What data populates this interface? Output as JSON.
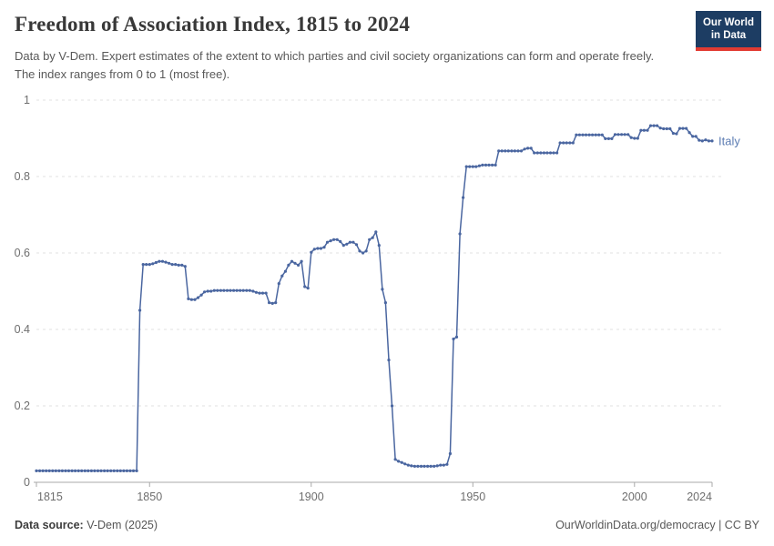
{
  "header": {
    "title": "Freedom of Association Index, 1815 to 2024",
    "subtitle": "Data by V-Dem. Expert estimates of the extent to which parties and civil society organizations can form and operate freely. The index ranges from 0 to 1 (most free).",
    "logo": {
      "line1": "Our World",
      "line2": "in Data"
    }
  },
  "chart_data": {
    "type": "line",
    "title": "Freedom of Association Index, 1815 to 2024",
    "xlabel": "",
    "ylabel": "",
    "xlim": [
      1815,
      2024
    ],
    "ylim": [
      0,
      1
    ],
    "x_ticks": [
      1815,
      1850,
      1900,
      1950,
      2000,
      2024
    ],
    "y_ticks": [
      0,
      0.2,
      0.4,
      0.6,
      0.8,
      1
    ],
    "grid": "horizontal-dashed",
    "legend_position": "end-of-line-label",
    "end_label": "Italy",
    "series": [
      {
        "name": "Italy",
        "color": "#4a66a0",
        "points": [
          [
            1815,
            0.03
          ],
          [
            1816,
            0.03
          ],
          [
            1817,
            0.03
          ],
          [
            1818,
            0.03
          ],
          [
            1819,
            0.03
          ],
          [
            1820,
            0.03
          ],
          [
            1821,
            0.03
          ],
          [
            1822,
            0.03
          ],
          [
            1823,
            0.03
          ],
          [
            1824,
            0.03
          ],
          [
            1825,
            0.03
          ],
          [
            1826,
            0.03
          ],
          [
            1827,
            0.03
          ],
          [
            1828,
            0.03
          ],
          [
            1829,
            0.03
          ],
          [
            1830,
            0.03
          ],
          [
            1831,
            0.03
          ],
          [
            1832,
            0.03
          ],
          [
            1833,
            0.03
          ],
          [
            1834,
            0.03
          ],
          [
            1835,
            0.03
          ],
          [
            1836,
            0.03
          ],
          [
            1837,
            0.03
          ],
          [
            1838,
            0.03
          ],
          [
            1839,
            0.03
          ],
          [
            1840,
            0.03
          ],
          [
            1841,
            0.03
          ],
          [
            1842,
            0.03
          ],
          [
            1843,
            0.03
          ],
          [
            1844,
            0.03
          ],
          [
            1845,
            0.03
          ],
          [
            1846,
            0.03
          ],
          [
            1847,
            0.45
          ],
          [
            1848,
            0.57
          ],
          [
            1849,
            0.57
          ],
          [
            1850,
            0.57
          ],
          [
            1851,
            0.572
          ],
          [
            1852,
            0.575
          ],
          [
            1853,
            0.578
          ],
          [
            1854,
            0.578
          ],
          [
            1855,
            0.576
          ],
          [
            1856,
            0.573
          ],
          [
            1857,
            0.57
          ],
          [
            1858,
            0.57
          ],
          [
            1859,
            0.568
          ],
          [
            1860,
            0.568
          ],
          [
            1861,
            0.565
          ],
          [
            1862,
            0.48
          ],
          [
            1863,
            0.478
          ],
          [
            1864,
            0.478
          ],
          [
            1865,
            0.483
          ],
          [
            1866,
            0.49
          ],
          [
            1867,
            0.498
          ],
          [
            1868,
            0.5
          ],
          [
            1869,
            0.5
          ],
          [
            1870,
            0.502
          ],
          [
            1871,
            0.502
          ],
          [
            1872,
            0.502
          ],
          [
            1873,
            0.502
          ],
          [
            1874,
            0.502
          ],
          [
            1875,
            0.502
          ],
          [
            1876,
            0.502
          ],
          [
            1877,
            0.502
          ],
          [
            1878,
            0.502
          ],
          [
            1879,
            0.502
          ],
          [
            1880,
            0.502
          ],
          [
            1881,
            0.502
          ],
          [
            1882,
            0.5
          ],
          [
            1883,
            0.497
          ],
          [
            1884,
            0.495
          ],
          [
            1885,
            0.495
          ],
          [
            1886,
            0.495
          ],
          [
            1887,
            0.47
          ],
          [
            1888,
            0.468
          ],
          [
            1889,
            0.47
          ],
          [
            1890,
            0.52
          ],
          [
            1891,
            0.54
          ],
          [
            1892,
            0.552
          ],
          [
            1893,
            0.568
          ],
          [
            1894,
            0.578
          ],
          [
            1895,
            0.573
          ],
          [
            1896,
            0.568
          ],
          [
            1897,
            0.578
          ],
          [
            1898,
            0.512
          ],
          [
            1899,
            0.508
          ],
          [
            1900,
            0.602
          ],
          [
            1901,
            0.61
          ],
          [
            1902,
            0.612
          ],
          [
            1903,
            0.612
          ],
          [
            1904,
            0.615
          ],
          [
            1905,
            0.628
          ],
          [
            1906,
            0.632
          ],
          [
            1907,
            0.635
          ],
          [
            1908,
            0.635
          ],
          [
            1909,
            0.63
          ],
          [
            1910,
            0.62
          ],
          [
            1911,
            0.623
          ],
          [
            1912,
            0.628
          ],
          [
            1913,
            0.628
          ],
          [
            1914,
            0.622
          ],
          [
            1915,
            0.605
          ],
          [
            1916,
            0.6
          ],
          [
            1917,
            0.605
          ],
          [
            1918,
            0.635
          ],
          [
            1919,
            0.64
          ],
          [
            1920,
            0.655
          ],
          [
            1921,
            0.62
          ],
          [
            1922,
            0.505
          ],
          [
            1923,
            0.47
          ],
          [
            1924,
            0.32
          ],
          [
            1925,
            0.2
          ],
          [
            1926,
            0.06
          ],
          [
            1927,
            0.055
          ],
          [
            1928,
            0.052
          ],
          [
            1929,
            0.048
          ],
          [
            1930,
            0.045
          ],
          [
            1931,
            0.043
          ],
          [
            1932,
            0.042
          ],
          [
            1933,
            0.042
          ],
          [
            1934,
            0.042
          ],
          [
            1935,
            0.042
          ],
          [
            1936,
            0.042
          ],
          [
            1937,
            0.042
          ],
          [
            1938,
            0.042
          ],
          [
            1939,
            0.043
          ],
          [
            1940,
            0.045
          ],
          [
            1941,
            0.045
          ],
          [
            1942,
            0.047
          ],
          [
            1943,
            0.075
          ],
          [
            1944,
            0.375
          ],
          [
            1945,
            0.38
          ],
          [
            1946,
            0.65
          ],
          [
            1947,
            0.745
          ],
          [
            1948,
            0.826
          ],
          [
            1949,
            0.826
          ],
          [
            1950,
            0.826
          ],
          [
            1951,
            0.826
          ],
          [
            1952,
            0.828
          ],
          [
            1953,
            0.83
          ],
          [
            1954,
            0.83
          ],
          [
            1955,
            0.83
          ],
          [
            1956,
            0.83
          ],
          [
            1957,
            0.83
          ],
          [
            1958,
            0.867
          ],
          [
            1959,
            0.867
          ],
          [
            1960,
            0.867
          ],
          [
            1961,
            0.867
          ],
          [
            1962,
            0.867
          ],
          [
            1963,
            0.867
          ],
          [
            1964,
            0.867
          ],
          [
            1965,
            0.867
          ],
          [
            1966,
            0.872
          ],
          [
            1967,
            0.874
          ],
          [
            1968,
            0.874
          ],
          [
            1969,
            0.862
          ],
          [
            1970,
            0.862
          ],
          [
            1971,
            0.862
          ],
          [
            1972,
            0.862
          ],
          [
            1973,
            0.862
          ],
          [
            1974,
            0.862
          ],
          [
            1975,
            0.862
          ],
          [
            1976,
            0.862
          ],
          [
            1977,
            0.888
          ],
          [
            1978,
            0.888
          ],
          [
            1979,
            0.888
          ],
          [
            1980,
            0.888
          ],
          [
            1981,
            0.888
          ],
          [
            1982,
            0.909
          ],
          [
            1983,
            0.909
          ],
          [
            1984,
            0.909
          ],
          [
            1985,
            0.909
          ],
          [
            1986,
            0.909
          ],
          [
            1987,
            0.909
          ],
          [
            1988,
            0.909
          ],
          [
            1989,
            0.909
          ],
          [
            1990,
            0.909
          ],
          [
            1991,
            0.899
          ],
          [
            1992,
            0.899
          ],
          [
            1993,
            0.899
          ],
          [
            1994,
            0.91
          ],
          [
            1995,
            0.91
          ],
          [
            1996,
            0.91
          ],
          [
            1997,
            0.91
          ],
          [
            1998,
            0.91
          ],
          [
            1999,
            0.902
          ],
          [
            2000,
            0.9
          ],
          [
            2001,
            0.9
          ],
          [
            2002,
            0.921
          ],
          [
            2003,
            0.921
          ],
          [
            2004,
            0.921
          ],
          [
            2005,
            0.933
          ],
          [
            2006,
            0.933
          ],
          [
            2007,
            0.933
          ],
          [
            2008,
            0.927
          ],
          [
            2009,
            0.925
          ],
          [
            2010,
            0.925
          ],
          [
            2011,
            0.925
          ],
          [
            2012,
            0.913
          ],
          [
            2013,
            0.912
          ],
          [
            2014,
            0.926
          ],
          [
            2015,
            0.926
          ],
          [
            2016,
            0.926
          ],
          [
            2017,
            0.915
          ],
          [
            2018,
            0.905
          ],
          [
            2019,
            0.905
          ],
          [
            2020,
            0.895
          ],
          [
            2021,
            0.893
          ],
          [
            2022,
            0.896
          ],
          [
            2023,
            0.893
          ],
          [
            2024,
            0.893
          ]
        ]
      }
    ]
  },
  "colors": {
    "line": "#4a66a0",
    "series_label": "#5d7db3",
    "gridline": "#e0e0e0",
    "axis": "#a9a9a9",
    "tick_text": "#6e6e6e",
    "logo_bg": "#1d3d63",
    "logo_red": "#e23b32"
  },
  "footer": {
    "source_label": "Data source:",
    "source_value": " V-Dem (2025)",
    "credit": "OurWorldinData.org/democracy | CC BY"
  }
}
